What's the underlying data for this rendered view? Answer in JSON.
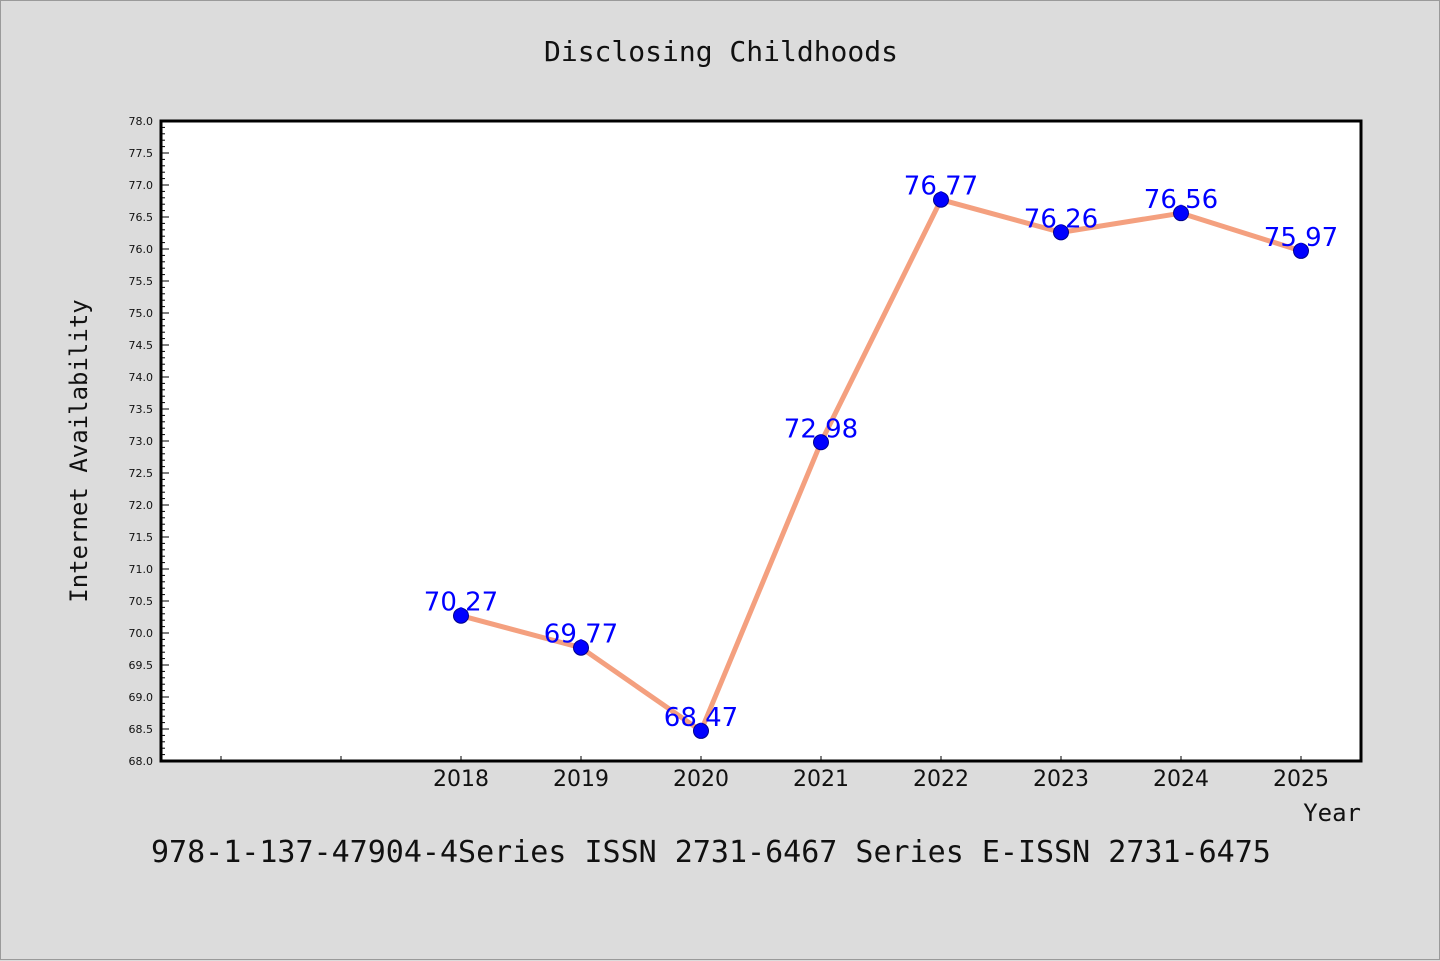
{
  "chart_data": {
    "type": "line",
    "title": "Disclosing Childhoods",
    "xlabel": "Year",
    "ylabel": "Internet Availability",
    "x": [
      "2018",
      "2019",
      "2020",
      "2021",
      "2022",
      "2023",
      "2024",
      "2025"
    ],
    "series": [
      {
        "values": [
          70.27,
          69.77,
          68.47,
          72.98,
          76.77,
          76.26,
          76.56,
          75.97
        ],
        "data_labels": [
          "70.27",
          "69.77",
          "68.47",
          "72.98",
          "76.77",
          "76.26",
          "76.56",
          "75.97"
        ]
      }
    ],
    "ylim": [
      68.0,
      78.0
    ],
    "y_ticks": [
      "68.0",
      "68.5",
      "69.0",
      "69.5",
      "70.0",
      "70.5",
      "71.0",
      "71.5",
      "72.0",
      "72.5",
      "73.0",
      "73.5",
      "74.0",
      "74.5",
      "75.0",
      "75.5",
      "76.0",
      "76.5",
      "77.0",
      "77.5",
      "78.0"
    ],
    "grid": false,
    "legend": "none",
    "colors": {
      "line": "#f4a07f",
      "marker": "#0000ff",
      "data_label": "#0000ff",
      "background": "#dcdcdc",
      "plot_background": "#ffffff"
    }
  },
  "footer": {
    "text": "978-1-137-47904-4Series ISSN 2731-6467 Series E-ISSN 2731-6475"
  }
}
